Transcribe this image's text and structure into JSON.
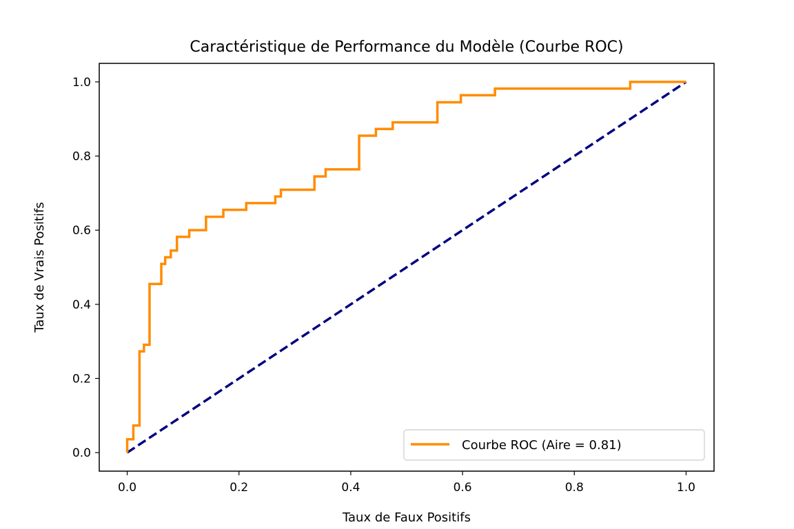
{
  "chart_data": {
    "type": "line",
    "title": "Caractéristique de Performance du Modèle (Courbe ROC)",
    "xlabel": "Taux de Faux Positifs",
    "ylabel": "Taux de Vrais Positifs",
    "xlim": [
      -0.05,
      1.05
    ],
    "ylim": [
      -0.05,
      1.05
    ],
    "xticks": [
      "0.0",
      "0.2",
      "0.4",
      "0.6",
      "0.8",
      "1.0"
    ],
    "yticks": [
      "0.0",
      "0.2",
      "0.4",
      "0.6",
      "0.8",
      "1.0"
    ],
    "grid": false,
    "legend_position": "lower-right",
    "series": [
      {
        "name": "Courbe ROC (Aire = 0.81)",
        "color": "#ff8c00",
        "style": "solid",
        "x": [
          0.0,
          0.0,
          0.0,
          0.0,
          0.0,
          0.0,
          0.011,
          0.011,
          0.022,
          0.022,
          0.022,
          0.022,
          0.03,
          0.03,
          0.04,
          0.04,
          0.061,
          0.061,
          0.061,
          0.068,
          0.068,
          0.078,
          0.078,
          0.089,
          0.089,
          0.111,
          0.111,
          0.141,
          0.141,
          0.172,
          0.172,
          0.213,
          0.213,
          0.265,
          0.265,
          0.275,
          0.275,
          0.335,
          0.335,
          0.355,
          0.355,
          0.415,
          0.415,
          0.445,
          0.445,
          0.475,
          0.475,
          0.555,
          0.555,
          0.597,
          0.597,
          0.658,
          0.658,
          0.9,
          0.9,
          1.0
        ],
        "y": [
          0.0,
          0.0,
          0.0,
          0.018,
          0.018,
          0.036,
          0.036,
          0.073,
          0.073,
          0.073,
          0.218,
          0.273,
          0.273,
          0.291,
          0.291,
          0.455,
          0.455,
          0.491,
          0.509,
          0.509,
          0.527,
          0.527,
          0.545,
          0.545,
          0.582,
          0.582,
          0.6,
          0.6,
          0.636,
          0.636,
          0.655,
          0.655,
          0.673,
          0.673,
          0.691,
          0.691,
          0.709,
          0.709,
          0.745,
          0.745,
          0.764,
          0.764,
          0.855,
          0.855,
          0.873,
          0.873,
          0.891,
          0.891,
          0.945,
          0.945,
          0.964,
          0.964,
          0.982,
          0.982,
          1.0,
          1.0
        ]
      },
      {
        "name": "",
        "color": "#000080",
        "style": "dashed",
        "x": [
          0.0,
          1.0
        ],
        "y": [
          0.0,
          1.0
        ]
      }
    ]
  }
}
